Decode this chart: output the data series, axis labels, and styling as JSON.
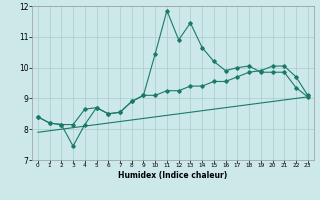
{
  "title": "",
  "xlabel": "Humidex (Indice chaleur)",
  "bg_color": "#cce8e8",
  "grid_color": "#aacccc",
  "line_color": "#1a7a6a",
  "xlim": [
    -0.5,
    23.5
  ],
  "ylim": [
    7,
    12
  ],
  "xticks": [
    0,
    1,
    2,
    3,
    4,
    5,
    6,
    7,
    8,
    9,
    10,
    11,
    12,
    13,
    14,
    15,
    16,
    17,
    18,
    19,
    20,
    21,
    22,
    23
  ],
  "yticks": [
    7,
    8,
    9,
    10,
    11,
    12
  ],
  "series1_x": [
    0,
    1,
    2,
    3,
    4,
    5,
    6,
    7,
    8,
    9,
    10,
    11,
    12,
    13,
    14,
    15,
    16,
    17,
    18,
    19,
    20,
    21,
    22,
    23
  ],
  "series1_y": [
    8.4,
    8.2,
    8.15,
    7.45,
    8.15,
    8.7,
    8.5,
    8.55,
    8.9,
    9.1,
    10.45,
    11.85,
    10.9,
    11.45,
    10.65,
    10.2,
    9.9,
    10.0,
    10.05,
    9.85,
    9.85,
    9.85,
    9.35,
    9.05
  ],
  "series2_x": [
    0,
    1,
    2,
    3,
    4,
    5,
    6,
    7,
    8,
    9,
    10,
    11,
    12,
    13,
    14,
    15,
    16,
    17,
    18,
    19,
    20,
    21,
    22,
    23
  ],
  "series2_y": [
    8.4,
    8.2,
    8.15,
    8.15,
    8.65,
    8.7,
    8.5,
    8.55,
    8.9,
    9.1,
    9.1,
    9.25,
    9.25,
    9.4,
    9.4,
    9.55,
    9.55,
    9.7,
    9.85,
    9.9,
    10.05,
    10.05,
    9.7,
    9.1
  ],
  "series3_x": [
    0,
    23
  ],
  "series3_y": [
    7.9,
    9.05
  ]
}
